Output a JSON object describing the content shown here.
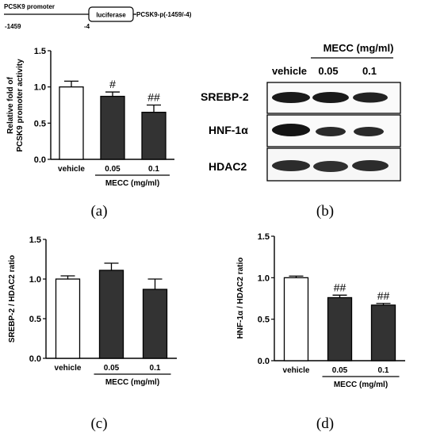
{
  "promoter_diagram": {
    "promoter_label": "PCSK9 promoter",
    "box_label": "luciferase",
    "construct_label": "PCSK9-p(-1459/-4)",
    "left_pos": "-1459",
    "right_pos": "-4"
  },
  "western_blot": {
    "header": "MECC (mg/ml)",
    "lanes": [
      "vehicle",
      "0.05",
      "0.1"
    ],
    "rows": [
      "SREBP-2",
      "HNF-1α",
      "HDAC2"
    ]
  },
  "panel_letters": [
    "(a)",
    "(b)",
    "(c)",
    "(d)"
  ],
  "chart_data": [
    {
      "type": "bar",
      "panel": "(a)",
      "categories": [
        "vehicle",
        "0.05",
        "0.1"
      ],
      "values": [
        1.0,
        0.87,
        0.65
      ],
      "errors": [
        0.08,
        0.06,
        0.1
      ],
      "annotations": [
        "",
        "#",
        "##"
      ],
      "colors": [
        "#ffffff",
        "#333333",
        "#333333"
      ],
      "ylabel": [
        "Relative fold of",
        "PCSK9 promoter activity"
      ],
      "xgroup_label": "MECC (mg/ml)",
      "ylim": [
        0,
        1.5
      ],
      "yticks": [
        "0.0",
        "0.5",
        "1.0",
        "1.5"
      ]
    },
    {
      "type": "bar",
      "panel": "(c)",
      "categories": [
        "vehicle",
        "0.05",
        "0.1"
      ],
      "values": [
        1.0,
        1.11,
        0.87
      ],
      "errors": [
        0.04,
        0.09,
        0.13
      ],
      "annotations": [
        "",
        "",
        ""
      ],
      "colors": [
        "#ffffff",
        "#333333",
        "#333333"
      ],
      "ylabel": [
        "SREBP-2 / HDAC2 ratio"
      ],
      "xgroup_label": "MECC (mg/ml)",
      "ylim": [
        0,
        1.5
      ],
      "yticks": [
        "0.0",
        "0.5",
        "1.0",
        "1.5"
      ]
    },
    {
      "type": "bar",
      "panel": "(d)",
      "categories": [
        "vehicle",
        "0.05",
        "0.1"
      ],
      "values": [
        1.0,
        0.76,
        0.67
      ],
      "errors": [
        0.02,
        0.03,
        0.02
      ],
      "annotations": [
        "",
        "##",
        "##"
      ],
      "colors": [
        "#ffffff",
        "#333333",
        "#333333"
      ],
      "ylabel": [
        "HNF-1α / HDAC2 ratio"
      ],
      "xgroup_label": "MECC (mg/ml)",
      "ylim": [
        0,
        1.5
      ],
      "yticks": [
        "0.0",
        "0.5",
        "1.0",
        "1.5"
      ]
    }
  ]
}
